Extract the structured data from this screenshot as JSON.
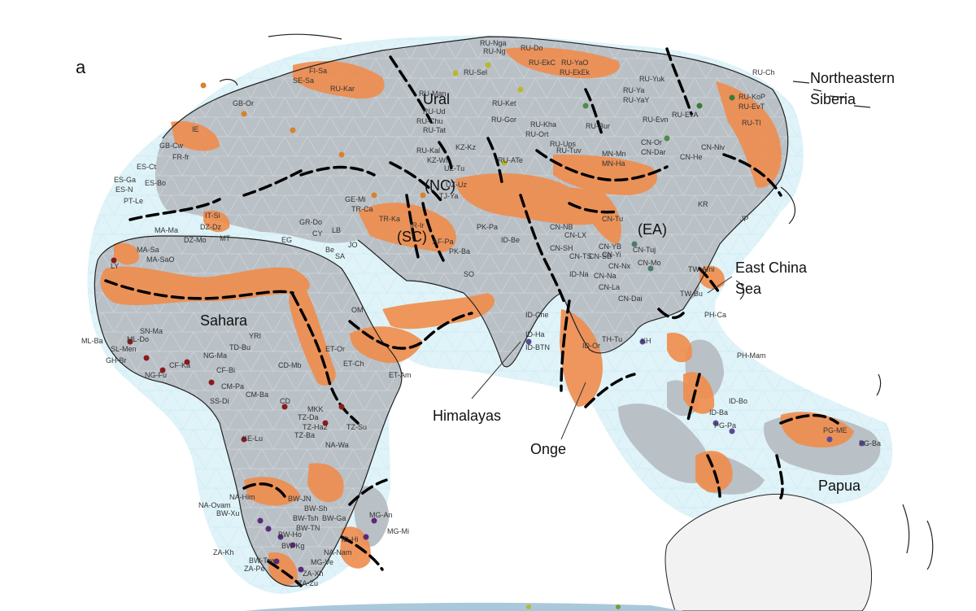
{
  "panel_label": "a",
  "regions": {
    "ural": "Ural",
    "northeastern_siberia_line1": "Northeastern",
    "northeastern_siberia_line2": "Siberia",
    "nc": "(NC)",
    "sc": "(SC)",
    "ea": "(EA)",
    "east_china_sea_line1": "East China",
    "east_china_sea_line2": "Sea",
    "sahara": "Sahara",
    "himalayas": "Himalayas",
    "onge": "Onge",
    "papua": "Papua"
  },
  "colors": {
    "land": "#b9c0c6",
    "barrier": "#f08c4c",
    "ocean_halo": "#dff3f8",
    "lines": "#000000",
    "coast": "#222222"
  },
  "sample_labels": [
    "RU-Nga",
    "RU-Do",
    "RU-Sel",
    "RU-Ng",
    "RU-YaO",
    "RU-EkC",
    "RU-EkEk",
    "RU-Ch",
    "RU-Man",
    "RU-Ud",
    "RU-Ket",
    "RU-Chu",
    "RU-Tat",
    "RU-Kal",
    "KZ-Wt",
    "KZ-Kz",
    "RU-Gor",
    "RU-Kha",
    "RU-Ort",
    "RU-Ups",
    "RU-Tuv",
    "RU-ATe",
    "UZ-Tu",
    "RU-Bur",
    "RU-Ya",
    "RU-YaY",
    "RU-Yuk",
    "RU-EvT",
    "RU-KoP",
    "RU-Evn",
    "RU-EvA",
    "RU-Tl",
    "MN-Mn",
    "MN-Ha",
    "CN-Or",
    "CN-Dar",
    "CN-He",
    "CN-Niv",
    "CN-Tu",
    "CN-NB",
    "CN-LX",
    "CN-YB",
    "CN-SH",
    "CN-TS",
    "CN-SB",
    "CN-Yi",
    "CN-Nx",
    "CN-Tuj",
    "CN-Mo",
    "CN-Na",
    "CN-La",
    "CN-Dai",
    "KR",
    "JP",
    "TW-Ami",
    "TW-Bu",
    "PH-Ca",
    "PH-Mam",
    "KH",
    "TH-Tu",
    "ID-Or",
    "ID-Be",
    "ID-BTN",
    "ID-Ha",
    "ID-Che",
    "ID-Na",
    "FI-Sa",
    "SE-Sa",
    "RU-Kar",
    "GB-Or",
    "IE",
    "GB-Cw",
    "FR-fr",
    "ES-Ga",
    "ES-Bo",
    "ES-N",
    "PT-Le",
    "ES-Ct",
    "IT-Si",
    "MT",
    "GR-Do",
    "CY",
    "LB",
    "JO",
    "GE-Mi",
    "TR-Ca",
    "TR-Ka",
    "IR-Ir",
    "AF-Pa",
    "PK-Ba",
    "PK-Pa",
    "TJ-Ya",
    "UZ-Uz",
    "MA-Ma",
    "DZ-Dz",
    "DZ-Mo",
    "MA-Sa",
    "MA-SaO",
    "LY",
    "EG",
    "Be",
    "SA",
    "OM",
    "SO",
    "ET-Am",
    "ET-Or",
    "ET-Ch",
    "ML-Ba",
    "ML-Do",
    "SN-Ma",
    "SL-Men",
    "GH-Br",
    "NG-Fu",
    "NG-Ma",
    "TD-Bu",
    "YRI",
    "CF-Ka",
    "CF-Bi",
    "CM-Ba",
    "CM-Pa",
    "SS-Di",
    "CD-Mb",
    "CD",
    "KE-Lu",
    "MKK",
    "TZ-Da",
    "TZ-Ha2",
    "TZ-Ba",
    "TZ-Su",
    "NA-Wa",
    "NA-Him",
    "NA-Ovam",
    "BW-Xu",
    "BW-JN",
    "BW-Sh",
    "BW-Tsh",
    "BW-Ga",
    "BW-TN",
    "BW-Ho",
    "BW-Kg",
    "BW-Tsw",
    "NA-Nam",
    "ZA-Kh",
    "ZA-Pe",
    "ZA-Xh",
    "ZA-Zu",
    "MG-Ve",
    "MG-An",
    "MG-Mi",
    "ID-Hi",
    "ID-Bo",
    "ID-Ba",
    "PG-Pa",
    "PG-ME",
    "PG-Ba"
  ]
}
